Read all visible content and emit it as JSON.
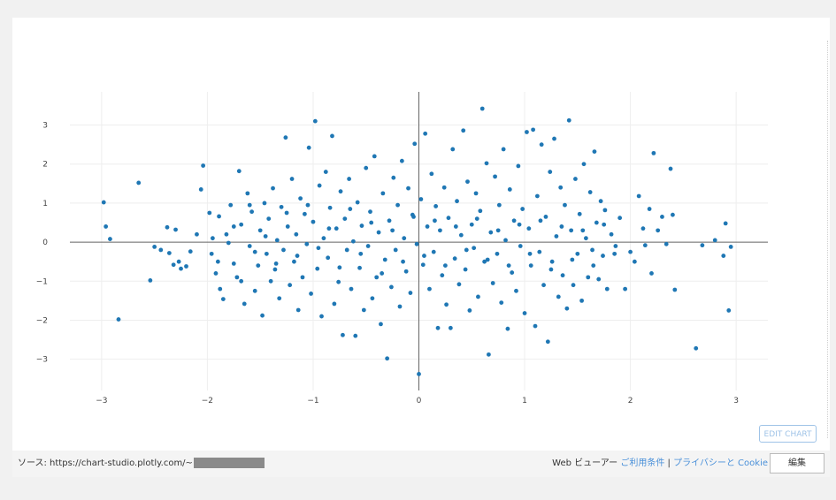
{
  "chart_data": {
    "type": "scatter",
    "title": "",
    "xlabel": "",
    "ylabel": "",
    "xlim": [
      -3.3,
      3.3
    ],
    "ylim": [
      -3.8,
      3.85
    ],
    "x_ticks": [
      -3,
      -2,
      -1,
      0,
      1,
      2,
      3
    ],
    "y_ticks": [
      -3,
      -2,
      -1,
      0,
      1,
      2,
      3
    ],
    "x_tick_labels": [
      "−3",
      "−2",
      "−1",
      "0",
      "1",
      "2",
      "3"
    ],
    "y_tick_labels": [
      "−3",
      "−2",
      "−1",
      "0",
      "1",
      "2",
      "3"
    ],
    "grid": true,
    "zero_lines": true,
    "marker_color": "#1f77b4",
    "series": [
      {
        "points": [
          [
            -2.98,
            1.02
          ],
          [
            -2.96,
            0.4
          ],
          [
            -2.92,
            0.08
          ],
          [
            -2.84,
            -1.98
          ],
          [
            -2.65,
            1.52
          ],
          [
            -2.54,
            -0.98
          ],
          [
            -2.5,
            -0.12
          ],
          [
            -2.44,
            -0.2
          ],
          [
            -2.38,
            0.38
          ],
          [
            -2.36,
            -0.28
          ],
          [
            -2.32,
            -0.58
          ],
          [
            -2.3,
            0.32
          ],
          [
            -2.27,
            -0.5
          ],
          [
            -2.25,
            -0.68
          ],
          [
            -2.2,
            -0.62
          ],
          [
            -2.16,
            -0.24
          ],
          [
            -2.1,
            0.2
          ],
          [
            -2.06,
            1.35
          ],
          [
            -2.04,
            1.96
          ],
          [
            -1.98,
            0.75
          ],
          [
            -1.96,
            -0.3
          ],
          [
            -1.92,
            -0.8
          ],
          [
            -1.89,
            0.66
          ],
          [
            -1.88,
            -1.2
          ],
          [
            -1.85,
            -1.46
          ],
          [
            -1.82,
            0.2
          ],
          [
            -1.8,
            -0.02
          ],
          [
            -1.78,
            0.95
          ],
          [
            -1.75,
            -0.55
          ],
          [
            -1.72,
            -0.9
          ],
          [
            -1.7,
            1.82
          ],
          [
            -1.68,
            0.45
          ],
          [
            -1.65,
            -1.58
          ],
          [
            -1.62,
            1.25
          ],
          [
            -1.6,
            -0.1
          ],
          [
            -1.58,
            0.78
          ],
          [
            -1.55,
            -1.25
          ],
          [
            -1.52,
            -0.6
          ],
          [
            -1.5,
            0.3
          ],
          [
            -1.48,
            -1.88
          ],
          [
            -1.46,
            1.0
          ],
          [
            -1.44,
            -0.3
          ],
          [
            -1.42,
            0.6
          ],
          [
            -1.4,
            -1.0
          ],
          [
            -1.38,
            1.38
          ],
          [
            -1.36,
            -0.7
          ],
          [
            -1.34,
            0.05
          ],
          [
            -1.32,
            -1.44
          ],
          [
            -1.3,
            0.9
          ],
          [
            -1.28,
            -0.2
          ],
          [
            -1.26,
            2.68
          ],
          [
            -1.24,
            0.4
          ],
          [
            -1.22,
            -1.1
          ],
          [
            -1.2,
            1.62
          ],
          [
            -1.18,
            -0.5
          ],
          [
            -1.16,
            0.2
          ],
          [
            -1.14,
            -1.74
          ],
          [
            -1.12,
            1.12
          ],
          [
            -1.1,
            -0.9
          ],
          [
            -1.08,
            0.72
          ],
          [
            -1.06,
            -0.05
          ],
          [
            -1.04,
            2.42
          ],
          [
            -1.02,
            -1.32
          ],
          [
            -1.0,
            0.52
          ],
          [
            -0.98,
            3.1
          ],
          [
            -0.96,
            -0.68
          ],
          [
            -0.94,
            1.45
          ],
          [
            -0.92,
            -1.9
          ],
          [
            -0.9,
            0.1
          ],
          [
            -0.88,
            1.8
          ],
          [
            -0.86,
            -0.4
          ],
          [
            -0.84,
            0.88
          ],
          [
            -0.82,
            2.72
          ],
          [
            -0.8,
            -1.58
          ],
          [
            -0.78,
            0.35
          ],
          [
            -0.76,
            -1.02
          ],
          [
            -0.74,
            1.3
          ],
          [
            -0.72,
            -2.38
          ],
          [
            -0.7,
            0.6
          ],
          [
            -0.68,
            -0.2
          ],
          [
            -0.66,
            1.62
          ],
          [
            -0.64,
            -1.2
          ],
          [
            -0.62,
            0.02
          ],
          [
            -0.6,
            -2.4
          ],
          [
            -0.58,
            1.02
          ],
          [
            -0.56,
            -0.66
          ],
          [
            -0.54,
            0.42
          ],
          [
            -0.52,
            -1.74
          ],
          [
            -0.5,
            1.9
          ],
          [
            -0.48,
            -0.1
          ],
          [
            -0.46,
            0.78
          ],
          [
            -0.44,
            -1.44
          ],
          [
            -0.42,
            2.2
          ],
          [
            -0.4,
            -0.9
          ],
          [
            -0.38,
            0.25
          ],
          [
            -0.36,
            -2.1
          ],
          [
            -0.34,
            1.25
          ],
          [
            -0.32,
            -0.45
          ],
          [
            -0.3,
            -2.98
          ],
          [
            -0.28,
            0.55
          ],
          [
            -0.26,
            -1.15
          ],
          [
            -0.24,
            1.65
          ],
          [
            -0.22,
            -0.2
          ],
          [
            -0.2,
            0.95
          ],
          [
            -0.18,
            -1.65
          ],
          [
            -0.16,
            2.08
          ],
          [
            -0.14,
            0.1
          ],
          [
            -0.12,
            -0.75
          ],
          [
            -0.1,
            1.38
          ],
          [
            -0.08,
            -1.3
          ],
          [
            -0.06,
            0.7
          ],
          [
            -0.04,
            2.52
          ],
          [
            -0.02,
            -0.05
          ],
          [
            0.0,
            -3.38
          ],
          [
            0.02,
            1.1
          ],
          [
            0.04,
            -0.58
          ],
          [
            0.06,
            2.78
          ],
          [
            0.08,
            0.4
          ],
          [
            0.1,
            -1.2
          ],
          [
            0.12,
            1.75
          ],
          [
            0.14,
            -0.25
          ],
          [
            0.16,
            0.92
          ],
          [
            0.18,
            -2.2
          ],
          [
            0.2,
            0.3
          ],
          [
            0.22,
            -0.85
          ],
          [
            0.24,
            1.4
          ],
          [
            0.26,
            -1.6
          ],
          [
            0.28,
            0.62
          ],
          [
            0.3,
            -2.2
          ],
          [
            0.32,
            2.38
          ],
          [
            0.34,
            -0.42
          ],
          [
            0.36,
            1.05
          ],
          [
            0.38,
            -1.08
          ],
          [
            0.4,
            0.18
          ],
          [
            0.42,
            2.86
          ],
          [
            0.44,
            -0.7
          ],
          [
            0.46,
            1.55
          ],
          [
            0.48,
            -1.75
          ],
          [
            0.5,
            0.45
          ],
          [
            0.52,
            -0.15
          ],
          [
            0.54,
            1.25
          ],
          [
            0.56,
            -1.4
          ],
          [
            0.58,
            0.8
          ],
          [
            0.6,
            3.42
          ],
          [
            0.62,
            -0.5
          ],
          [
            0.64,
            2.02
          ],
          [
            0.66,
            -2.88
          ],
          [
            0.68,
            0.25
          ],
          [
            0.7,
            -1.05
          ],
          [
            0.72,
            1.68
          ],
          [
            0.74,
            -0.3
          ],
          [
            0.76,
            0.95
          ],
          [
            0.78,
            -1.55
          ],
          [
            0.8,
            2.38
          ],
          [
            0.82,
            0.05
          ],
          [
            0.84,
            -2.22
          ],
          [
            0.86,
            1.35
          ],
          [
            0.88,
            -0.78
          ],
          [
            0.9,
            0.55
          ],
          [
            0.92,
            -1.25
          ],
          [
            0.94,
            1.95
          ],
          [
            0.96,
            -0.1
          ],
          [
            0.98,
            0.85
          ],
          [
            1.0,
            -1.82
          ],
          [
            1.02,
            2.82
          ],
          [
            1.04,
            0.35
          ],
          [
            1.06,
            -0.6
          ],
          [
            1.08,
            2.88
          ],
          [
            1.1,
            -2.15
          ],
          [
            1.12,
            1.18
          ],
          [
            1.14,
            -0.25
          ],
          [
            1.16,
            2.5
          ],
          [
            1.18,
            -1.1
          ],
          [
            1.2,
            0.65
          ],
          [
            1.22,
            -2.55
          ],
          [
            1.24,
            1.8
          ],
          [
            1.26,
            -0.5
          ],
          [
            1.28,
            2.65
          ],
          [
            1.3,
            0.15
          ],
          [
            1.32,
            -1.4
          ],
          [
            1.34,
            1.4
          ],
          [
            1.36,
            -0.85
          ],
          [
            1.38,
            0.95
          ],
          [
            1.4,
            -1.7
          ],
          [
            1.42,
            3.12
          ],
          [
            1.44,
            0.3
          ],
          [
            1.46,
            -1.1
          ],
          [
            1.48,
            1.62
          ],
          [
            1.5,
            -0.3
          ],
          [
            1.52,
            0.72
          ],
          [
            1.54,
            -1.5
          ],
          [
            1.56,
            2.0
          ],
          [
            1.58,
            0.1
          ],
          [
            1.6,
            -0.9
          ],
          [
            1.62,
            1.28
          ],
          [
            1.64,
            -0.2
          ],
          [
            1.66,
            2.32
          ],
          [
            1.68,
            0.5
          ],
          [
            1.7,
            -0.95
          ],
          [
            1.72,
            1.05
          ],
          [
            1.74,
            -0.35
          ],
          [
            1.76,
            0.82
          ],
          [
            1.78,
            -1.2
          ],
          [
            1.82,
            0.2
          ],
          [
            1.86,
            -0.1
          ],
          [
            1.9,
            0.62
          ],
          [
            1.95,
            -1.2
          ],
          [
            2.0,
            -0.25
          ],
          [
            2.04,
            -0.5
          ],
          [
            2.08,
            1.18
          ],
          [
            2.12,
            0.35
          ],
          [
            2.14,
            -0.08
          ],
          [
            2.18,
            0.85
          ],
          [
            2.2,
            -0.8
          ],
          [
            2.22,
            2.28
          ],
          [
            2.26,
            0.3
          ],
          [
            2.3,
            0.65
          ],
          [
            2.34,
            -0.05
          ],
          [
            2.38,
            1.88
          ],
          [
            2.4,
            0.7
          ],
          [
            2.42,
            -1.22
          ],
          [
            2.62,
            -2.72
          ],
          [
            2.68,
            -0.08
          ],
          [
            2.8,
            0.05
          ],
          [
            2.88,
            -0.35
          ],
          [
            2.9,
            0.48
          ],
          [
            2.93,
            -1.75
          ],
          [
            2.95,
            -0.12
          ],
          [
            -1.95,
            0.1
          ],
          [
            -1.9,
            -0.5
          ],
          [
            -1.75,
            0.4
          ],
          [
            -1.68,
            -1.0
          ],
          [
            -1.6,
            0.95
          ],
          [
            -1.55,
            -0.25
          ],
          [
            -1.45,
            0.15
          ],
          [
            -1.35,
            -0.55
          ],
          [
            -1.25,
            0.75
          ],
          [
            -1.15,
            -0.35
          ],
          [
            -1.05,
            0.95
          ],
          [
            -0.95,
            -0.15
          ],
          [
            -0.85,
            0.35
          ],
          [
            -0.75,
            -0.65
          ],
          [
            -0.65,
            0.85
          ],
          [
            -0.55,
            -0.3
          ],
          [
            -0.45,
            0.5
          ],
          [
            -0.35,
            -0.8
          ],
          [
            -0.25,
            0.3
          ],
          [
            -0.15,
            -0.5
          ],
          [
            -0.05,
            0.65
          ],
          [
            0.05,
            -0.35
          ],
          [
            0.15,
            0.55
          ],
          [
            0.25,
            -0.6
          ],
          [
            0.35,
            0.4
          ],
          [
            0.45,
            -0.2
          ],
          [
            0.55,
            0.6
          ],
          [
            0.65,
            -0.45
          ],
          [
            0.75,
            0.3
          ],
          [
            0.85,
            -0.6
          ],
          [
            0.95,
            0.45
          ],
          [
            1.05,
            -0.3
          ],
          [
            1.15,
            0.55
          ],
          [
            1.25,
            -0.7
          ],
          [
            1.35,
            0.4
          ],
          [
            1.45,
            -0.45
          ],
          [
            1.55,
            0.3
          ],
          [
            1.65,
            -0.6
          ],
          [
            1.75,
            0.45
          ],
          [
            1.85,
            -0.3
          ]
        ]
      }
    ]
  },
  "edit_chart_button": "EDIT CHART",
  "footer": {
    "source_label": "ソース: https://chart-studio.plotly.com/~",
    "web_viewer_label": "Web ビューアー",
    "terms_link": "ご利用条件",
    "separator": "|",
    "privacy_link": "プライバシーと Cookie",
    "edit_button": "編集"
  }
}
